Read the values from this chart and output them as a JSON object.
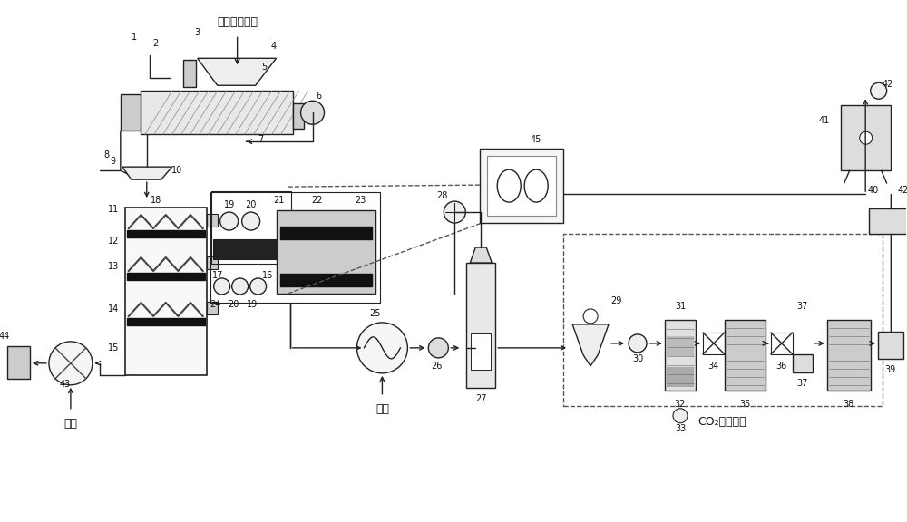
{
  "bg": "#ffffff",
  "lc": "#222222",
  "dgray": "#555555",
  "black": "#111111",
  "title": "工业可燃垃圾",
  "air": "空气",
  "co2sys": "CO₂捕集系统"
}
